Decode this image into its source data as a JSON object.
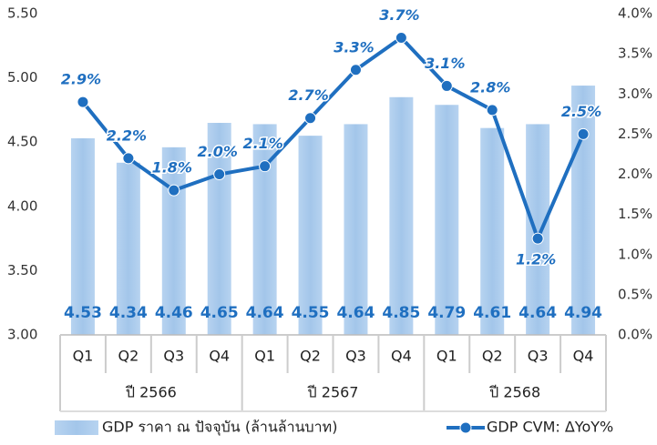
{
  "chart_data": {
    "type": "bar_line",
    "categories": [
      "Q1",
      "Q2",
      "Q3",
      "Q4",
      "Q1",
      "Q2",
      "Q3",
      "Q4",
      "Q1",
      "Q2",
      "Q3",
      "Q4"
    ],
    "x_groups": [
      "ปี 2566",
      "ปี 2567",
      "ปี 2568"
    ],
    "series": [
      {
        "name": "GDP ราคา ณ ปัจจุบัน (ล้านล้านบาท)",
        "type": "bar",
        "color": "#a9caec",
        "values": [
          4.53,
          4.34,
          4.46,
          4.65,
          4.64,
          4.55,
          4.64,
          4.85,
          4.79,
          4.61,
          4.64,
          4.94
        ]
      },
      {
        "name": "GDP CVM: ΔYoY%",
        "type": "line",
        "axis": "y2",
        "color": "#1f6fc0",
        "values": [
          2.9,
          2.2,
          1.8,
          2.0,
          2.1,
          2.7,
          3.3,
          3.7,
          3.1,
          2.8,
          1.2,
          2.5
        ],
        "value_labels": [
          "2.9%",
          "2.2%",
          "1.8%",
          "2.0%",
          "2.1%",
          "2.7%",
          "3.3%",
          "3.7%",
          "3.1%",
          "2.8%",
          "1.2%",
          "2.5%"
        ]
      }
    ],
    "ylim": [
      3.0,
      5.5
    ],
    "yticks": [
      {
        "value": 3.0,
        "label": "3.00"
      },
      {
        "value": 3.5,
        "label": "3.50"
      },
      {
        "value": 4.0,
        "label": "4.00"
      },
      {
        "value": 4.5,
        "label": "4.50"
      },
      {
        "value": 5.0,
        "label": "5.00"
      },
      {
        "value": 5.5,
        "label": "5.50"
      }
    ],
    "y2lim": [
      0,
      4
    ],
    "y2ticks": [
      {
        "value": 0,
        "label": "0.0%"
      },
      {
        "value": 0.5,
        "label": "0.5%"
      },
      {
        "value": 1,
        "label": "1.0%"
      },
      {
        "value": 1.5,
        "label": "1.5%"
      },
      {
        "value": 2,
        "label": "2.0%"
      },
      {
        "value": 2.5,
        "label": "2.5%"
      },
      {
        "value": 3,
        "label": "3.0%"
      },
      {
        "value": 3.5,
        "label": "3.5%"
      },
      {
        "value": 4,
        "label": "4.0%"
      }
    ],
    "legend": "bottom"
  }
}
